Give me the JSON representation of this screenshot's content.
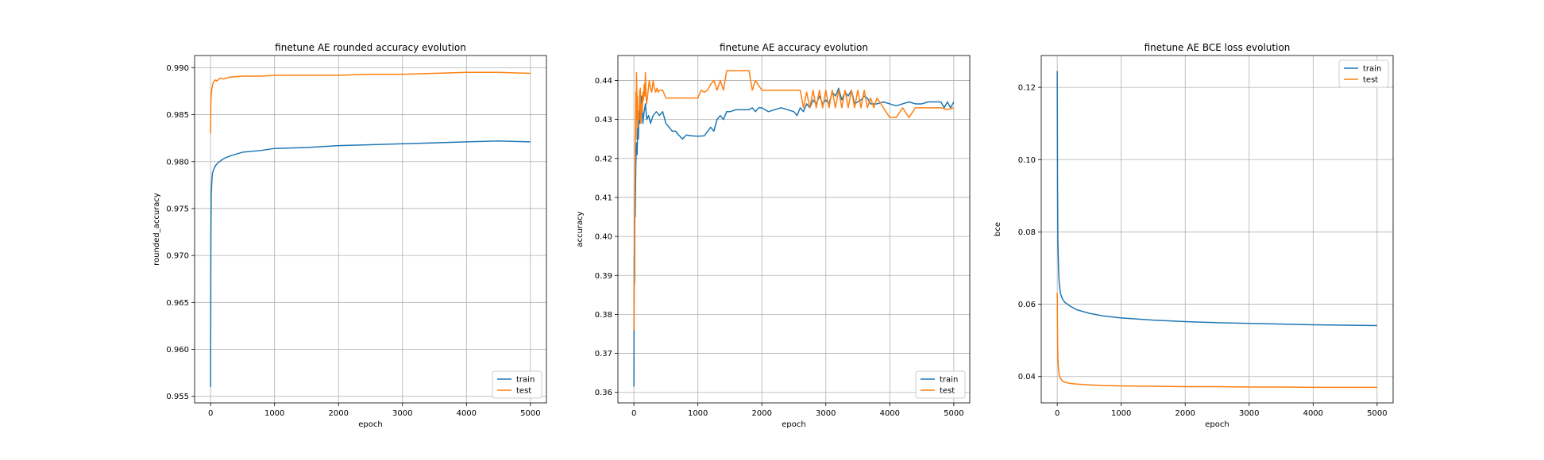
{
  "chart_data": [
    {
      "type": "line",
      "title": "finetune AE rounded accuracy evolution",
      "xlabel": "epoch",
      "ylabel": "rounded_accuracy",
      "xlim": [
        -250,
        5250
      ],
      "ylim": [
        0.9543,
        0.9913
      ],
      "xticks": [
        0,
        1000,
        2000,
        3000,
        4000,
        5000
      ],
      "yticks": [
        0.955,
        0.96,
        0.965,
        0.97,
        0.975,
        0.98,
        0.985,
        0.99
      ],
      "ytick_labels": [
        "0.955",
        "0.960",
        "0.965",
        "0.970",
        "0.975",
        "0.980",
        "0.985",
        "0.990"
      ],
      "grid": true,
      "legend": "lower-right",
      "series": [
        {
          "name": "train",
          "color": "#1f77b4",
          "x": [
            0,
            5,
            10,
            20,
            30,
            50,
            80,
            120,
            200,
            300,
            500,
            800,
            1000,
            1500,
            2000,
            2500,
            3000,
            3500,
            4000,
            4500,
            5000
          ],
          "y": [
            0.956,
            0.972,
            0.9765,
            0.978,
            0.9788,
            0.9792,
            0.9796,
            0.9799,
            0.9803,
            0.9806,
            0.981,
            0.9812,
            0.9814,
            0.9815,
            0.9817,
            0.9818,
            0.9819,
            0.982,
            0.9821,
            0.9822,
            0.9821
          ]
        },
        {
          "name": "test",
          "color": "#ff7f0e",
          "x": [
            0,
            5,
            10,
            20,
            40,
            70,
            100,
            150,
            200,
            300,
            500,
            800,
            1000,
            1500,
            2000,
            2500,
            3000,
            3500,
            4000,
            4500,
            5000
          ],
          "y": [
            0.983,
            0.9865,
            0.987,
            0.9878,
            0.9884,
            0.9887,
            0.9886,
            0.9889,
            0.9888,
            0.989,
            0.9891,
            0.9891,
            0.9892,
            0.9892,
            0.9892,
            0.9893,
            0.9893,
            0.9894,
            0.9895,
            0.9895,
            0.9894
          ]
        }
      ]
    },
    {
      "type": "line",
      "title": "finetune AE accuracy evolution",
      "xlabel": "epoch",
      "ylabel": "accuracy",
      "xlim": [
        -250,
        5250
      ],
      "ylim": [
        0.3573,
        0.4464
      ],
      "xticks": [
        0,
        1000,
        2000,
        3000,
        4000,
        5000
      ],
      "yticks": [
        0.36,
        0.37,
        0.38,
        0.39,
        0.4,
        0.41,
        0.42,
        0.43,
        0.44
      ],
      "ytick_labels": [
        "0.36",
        "0.37",
        "0.38",
        "0.39",
        "0.40",
        "0.41",
        "0.42",
        "0.43",
        "0.44"
      ],
      "grid": true,
      "legend": "lower-right",
      "series": [
        {
          "name": "train",
          "color": "#1f77b4",
          "x": [
            0,
            5,
            10,
            15,
            20,
            30,
            40,
            50,
            60,
            70,
            80,
            90,
            100,
            120,
            140,
            160,
            180,
            200,
            230,
            260,
            300,
            350,
            400,
            450,
            500,
            550,
            600,
            650,
            700,
            760,
            820,
            900,
            1000,
            1100,
            1200,
            1250,
            1300,
            1350,
            1400,
            1450,
            1500,
            1600,
            1700,
            1800,
            1850,
            1900,
            1950,
            2000,
            2100,
            2200,
            2300,
            2400,
            2500,
            2550,
            2600,
            2650,
            2700,
            2750,
            2800,
            2850,
            2900,
            2950,
            3000,
            3050,
            3100,
            3150,
            3200,
            3250,
            3300,
            3350,
            3400,
            3450,
            3500,
            3550,
            3600,
            3650,
            3700,
            3800,
            3900,
            4000,
            4100,
            4200,
            4300,
            4400,
            4500,
            4600,
            4700,
            4800,
            4850,
            4900,
            4950,
            5000
          ],
          "y": [
            0.3615,
            0.395,
            0.388,
            0.41,
            0.405,
            0.418,
            0.424,
            0.421,
            0.428,
            0.425,
            0.432,
            0.429,
            0.433,
            0.436,
            0.429,
            0.432,
            0.434,
            0.43,
            0.431,
            0.429,
            0.431,
            0.432,
            0.431,
            0.432,
            0.429,
            0.428,
            0.427,
            0.427,
            0.426,
            0.425,
            0.426,
            0.4258,
            0.4257,
            0.4258,
            0.428,
            0.427,
            0.43,
            0.431,
            0.43,
            0.432,
            0.432,
            0.4325,
            0.4325,
            0.4325,
            0.433,
            0.432,
            0.433,
            0.433,
            0.432,
            0.4325,
            0.433,
            0.4325,
            0.432,
            0.431,
            0.433,
            0.432,
            0.434,
            0.433,
            0.435,
            0.434,
            0.436,
            0.434,
            0.435,
            0.434,
            0.437,
            0.436,
            0.438,
            0.435,
            0.437,
            0.436,
            0.4375,
            0.434,
            0.4345,
            0.435,
            0.436,
            0.4355,
            0.434,
            0.434,
            0.4345,
            0.434,
            0.4335,
            0.434,
            0.4345,
            0.434,
            0.434,
            0.4345,
            0.4345,
            0.4345,
            0.433,
            0.4345,
            0.433,
            0.4345
          ]
        },
        {
          "name": "test",
          "color": "#ff7f0e",
          "x": [
            0,
            3,
            6,
            10,
            15,
            20,
            25,
            30,
            35,
            40,
            45,
            50,
            55,
            60,
            70,
            80,
            90,
            100,
            110,
            120,
            130,
            140,
            150,
            160,
            170,
            180,
            190,
            200,
            220,
            240,
            260,
            280,
            300,
            320,
            340,
            360,
            380,
            400,
            450,
            500,
            550,
            600,
            700,
            800,
            900,
            1000,
            1050,
            1100,
            1150,
            1200,
            1250,
            1300,
            1350,
            1400,
            1450,
            1500,
            1550,
            1600,
            1700,
            1800,
            1850,
            1900,
            2000,
            2200,
            2400,
            2600,
            2650,
            2700,
            2750,
            2800,
            2850,
            2900,
            2950,
            3000,
            3050,
            3100,
            3150,
            3200,
            3250,
            3300,
            3350,
            3400,
            3450,
            3500,
            3550,
            3600,
            3650,
            3700,
            3750,
            3800,
            3900,
            4000,
            4100,
            4200,
            4300,
            4400,
            4500,
            4600,
            4700,
            4800,
            4900,
            5000
          ],
          "y": [
            0.376,
            0.384,
            0.395,
            0.405,
            0.41,
            0.422,
            0.428,
            0.437,
            0.425,
            0.442,
            0.438,
            0.43,
            0.436,
            0.428,
            0.432,
            0.43,
            0.437,
            0.438,
            0.429,
            0.434,
            0.432,
            0.437,
            0.435,
            0.439,
            0.436,
            0.442,
            0.436,
            0.434,
            0.437,
            0.44,
            0.438,
            0.437,
            0.44,
            0.438,
            0.437,
            0.438,
            0.437,
            0.4375,
            0.4375,
            0.4355,
            0.4355,
            0.4355,
            0.4355,
            0.4355,
            0.4355,
            0.4355,
            0.4375,
            0.437,
            0.4375,
            0.439,
            0.44,
            0.4375,
            0.44,
            0.4375,
            0.4425,
            0.4425,
            0.4425,
            0.4425,
            0.4425,
            0.4425,
            0.4375,
            0.44,
            0.4375,
            0.4375,
            0.4375,
            0.4375,
            0.433,
            0.437,
            0.433,
            0.4375,
            0.433,
            0.4375,
            0.433,
            0.4375,
            0.433,
            0.4375,
            0.433,
            0.4375,
            0.433,
            0.4375,
            0.433,
            0.4375,
            0.433,
            0.4375,
            0.433,
            0.4375,
            0.433,
            0.4355,
            0.433,
            0.4355,
            0.433,
            0.4305,
            0.4305,
            0.433,
            0.4305,
            0.433,
            0.433,
            0.433,
            0.433,
            0.433,
            0.4325,
            0.433
          ]
        }
      ]
    },
    {
      "type": "line",
      "title": "finetune AE BCE loss evolution",
      "xlabel": "epoch",
      "ylabel": "bce",
      "xlim": [
        -250,
        5250
      ],
      "ylim": [
        0.0327,
        0.1288
      ],
      "xticks": [
        0,
        1000,
        2000,
        3000,
        4000,
        5000
      ],
      "yticks": [
        0.04,
        0.06,
        0.08,
        0.1,
        0.12
      ],
      "ytick_labels": [
        "0.04",
        "0.06",
        "0.08",
        "0.10",
        "0.12"
      ],
      "grid": true,
      "legend": "top-right",
      "series": [
        {
          "name": "train",
          "color": "#1f77b4",
          "x": [
            0,
            5,
            10,
            20,
            30,
            50,
            80,
            120,
            200,
            300,
            500,
            700,
            1000,
            1500,
            2000,
            2500,
            3000,
            3500,
            4000,
            4500,
            5000
          ],
          "y": [
            0.1245,
            0.092,
            0.078,
            0.07,
            0.066,
            0.063,
            0.0615,
            0.0605,
            0.0595,
            0.0585,
            0.0575,
            0.0568,
            0.0562,
            0.0556,
            0.0552,
            0.0549,
            0.0547,
            0.0545,
            0.0543,
            0.0542,
            0.0541
          ]
        },
        {
          "name": "test",
          "color": "#ff7f0e",
          "x": [
            0,
            5,
            10,
            20,
            30,
            50,
            80,
            120,
            200,
            300,
            500,
            700,
            1000,
            1500,
            2000,
            2500,
            3000,
            3500,
            4000,
            4500,
            5000
          ],
          "y": [
            0.0632,
            0.05,
            0.045,
            0.042,
            0.0405,
            0.0395,
            0.0388,
            0.0384,
            0.0381,
            0.0379,
            0.0377,
            0.0375,
            0.0374,
            0.0373,
            0.0372,
            0.0372,
            0.0371,
            0.0371,
            0.037,
            0.037,
            0.037
          ]
        }
      ]
    }
  ]
}
